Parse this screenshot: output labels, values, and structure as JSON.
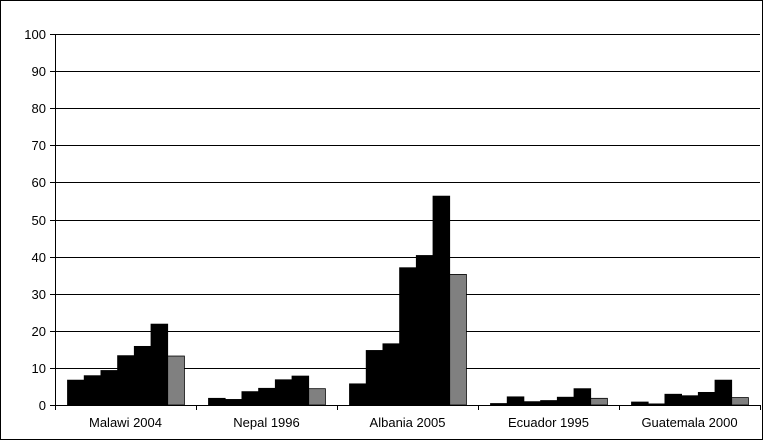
{
  "chart_data": {
    "type": "bar",
    "title": "",
    "xlabel": "",
    "ylabel": "",
    "ylim": [
      0,
      100
    ],
    "yticks": [
      0,
      10,
      20,
      30,
      40,
      50,
      60,
      70,
      80,
      90,
      100
    ],
    "grid": "horizontal",
    "legend": "none",
    "categories": [
      "Malawi 2004",
      "Nepal 1996",
      "Albania 2005",
      "Ecuador 1995",
      "Guatemala 2000"
    ],
    "series": [
      {
        "color": "#000000",
        "values": [
          6.7,
          1.8,
          5.7,
          0.4,
          0.8
        ]
      },
      {
        "color": "#000000",
        "values": [
          7.9,
          1.5,
          14.7,
          2.2,
          0.3
        ]
      },
      {
        "color": "#000000",
        "values": [
          9.3,
          3.6,
          16.5,
          0.9,
          2.9
        ]
      },
      {
        "color": "#000000",
        "values": [
          13.3,
          4.5,
          37.0,
          1.2,
          2.5
        ]
      },
      {
        "color": "#000000",
        "values": [
          15.8,
          6.8,
          40.3,
          2.1,
          3.4
        ]
      },
      {
        "color": "#000000",
        "values": [
          21.8,
          7.8,
          56.3,
          4.4,
          6.7
        ]
      },
      {
        "color": "#808080",
        "values": [
          13.2,
          4.4,
          35.2,
          1.8,
          2.0
        ]
      }
    ]
  }
}
